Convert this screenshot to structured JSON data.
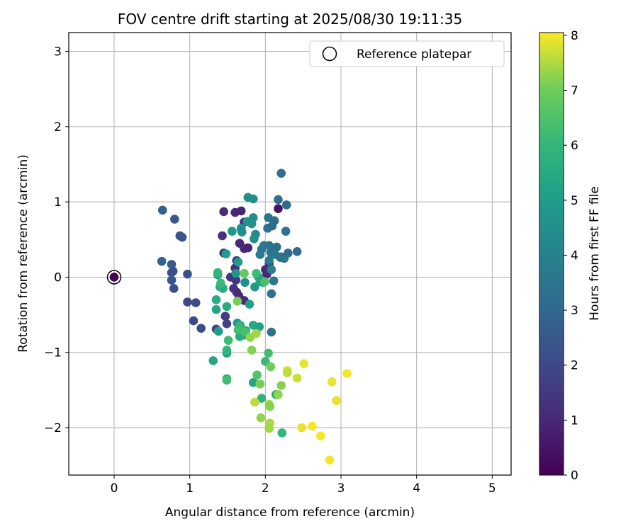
{
  "chart_data": {
    "type": "scatter",
    "title": "FOV centre drift starting at 2025/08/30 19:11:35",
    "xlabel": "Angular distance from reference (arcmin)",
    "ylabel": "Rotation from reference (arcmin)",
    "xlim": [
      -0.6,
      5.25
    ],
    "ylim": [
      -2.63,
      3.25
    ],
    "xticks": [
      "0",
      "1",
      "2",
      "3",
      "4",
      "5"
    ],
    "yticks": [
      "−2",
      "−1",
      "0",
      "1",
      "2",
      "3"
    ],
    "xtick_values": [
      0,
      1,
      2,
      3,
      4,
      5
    ],
    "ytick_values": [
      -2,
      -1,
      0,
      1,
      2,
      3
    ],
    "grid": true,
    "legend": {
      "label": "Reference platepar",
      "location": "upper right"
    },
    "reference_point": {
      "x": 0,
      "y": 0,
      "hours": 0
    },
    "colorbar": {
      "label": "Hours from first FF file",
      "colormap": "viridis",
      "range": [
        0,
        8.05
      ],
      "ticks": [
        "0",
        "1",
        "2",
        "3",
        "4",
        "5",
        "6",
        "7",
        "8"
      ],
      "tick_values": [
        0,
        1,
        2,
        3,
        4,
        5,
        6,
        7,
        8
      ]
    },
    "points": [
      [
        0.64,
        0.89,
        2.8
      ],
      [
        0.8,
        0.77,
        2.6
      ],
      [
        0.87,
        0.55,
        2.5
      ],
      [
        0.9,
        0.53,
        2.4
      ],
      [
        0.63,
        0.21,
        2.9
      ],
      [
        0.76,
        0.17,
        2.6
      ],
      [
        0.78,
        0.08,
        2.3
      ],
      [
        0.76,
        0.06,
        2.2
      ],
      [
        0.97,
        0.04,
        2.3
      ],
      [
        0.76,
        -0.04,
        2.5
      ],
      [
        0.79,
        -0.15,
        2.2
      ],
      [
        0.97,
        -0.33,
        2.0
      ],
      [
        1.08,
        -0.34,
        2.1
      ],
      [
        1.05,
        -0.58,
        2.0
      ],
      [
        1.15,
        -0.68,
        2.1
      ],
      [
        1.45,
        0.87,
        1.2
      ],
      [
        1.6,
        0.86,
        1.0
      ],
      [
        1.68,
        0.88,
        0.9
      ],
      [
        1.72,
        0.73,
        1.1
      ],
      [
        1.68,
        0.64,
        1.2
      ],
      [
        1.66,
        0.45,
        1.0
      ],
      [
        1.43,
        0.55,
        1.3
      ],
      [
        1.45,
        0.32,
        1.4
      ],
      [
        1.72,
        0.38,
        1.0
      ],
      [
        1.77,
        0.39,
        0.9
      ],
      [
        1.62,
        0.22,
        1.5
      ],
      [
        1.6,
        0.12,
        1.3
      ],
      [
        1.54,
        0.0,
        1.4
      ],
      [
        1.61,
        -0.04,
        1.5
      ],
      [
        1.58,
        -0.15,
        1.4
      ],
      [
        1.62,
        -0.2,
        1.2
      ],
      [
        1.65,
        -0.25,
        1.1
      ],
      [
        1.72,
        -0.31,
        1.0
      ],
      [
        1.47,
        -0.52,
        1.6
      ],
      [
        1.49,
        -0.62,
        1.8
      ],
      [
        1.35,
        -0.69,
        1.9
      ],
      [
        2.0,
        0.1,
        1.1
      ],
      [
        2.05,
        0.18,
        1.2
      ],
      [
        2.02,
        0.04,
        1.0
      ],
      [
        2.17,
        0.91,
        0.5
      ],
      [
        2.21,
        1.38,
        3.3
      ],
      [
        2.17,
        1.03,
        3.3
      ],
      [
        2.28,
        0.96,
        3.2
      ],
      [
        2.04,
        0.79,
        3.4
      ],
      [
        2.12,
        0.75,
        3.3
      ],
      [
        2.03,
        0.65,
        3.5
      ],
      [
        2.09,
        0.68,
        3.2
      ],
      [
        2.27,
        0.61,
        3.4
      ],
      [
        2.05,
        0.42,
        3.5
      ],
      [
        2.15,
        0.4,
        3.3
      ],
      [
        1.98,
        0.42,
        3.6
      ],
      [
        1.95,
        0.37,
        3.7
      ],
      [
        2.07,
        0.33,
        3.5
      ],
      [
        2.13,
        0.3,
        3.6
      ],
      [
        2.21,
        0.27,
        3.3
      ],
      [
        2.3,
        0.32,
        3.2
      ],
      [
        2.42,
        0.34,
        3.1
      ],
      [
        2.25,
        0.25,
        3.4
      ],
      [
        2.2,
        0.26,
        3.5
      ],
      [
        2.05,
        0.22,
        3.6
      ],
      [
        1.93,
        0.3,
        3.8
      ],
      [
        2.08,
        0.1,
        3.9
      ],
      [
        2.11,
        -0.05,
        3.6
      ],
      [
        2.08,
        -0.22,
        3.4
      ],
      [
        2.08,
        -0.73,
        3.4
      ],
      [
        1.77,
        1.06,
        4.5
      ],
      [
        1.84,
        1.04,
        4.4
      ],
      [
        1.76,
        0.74,
        4.7
      ],
      [
        1.84,
        0.79,
        4.4
      ],
      [
        1.82,
        0.71,
        4.6
      ],
      [
        1.87,
        0.57,
        4.3
      ],
      [
        1.85,
        0.51,
        4.5
      ],
      [
        1.68,
        0.65,
        4.6
      ],
      [
        1.56,
        0.61,
        4.8
      ],
      [
        1.69,
        0.6,
        4.4
      ],
      [
        1.48,
        0.31,
        4.9
      ],
      [
        1.64,
        0.2,
        5.0
      ],
      [
        1.61,
        0.05,
        4.7
      ],
      [
        1.73,
        -0.07,
        4.5
      ],
      [
        1.86,
        -0.13,
        4.8
      ],
      [
        1.79,
        -0.36,
        5.1
      ],
      [
        1.63,
        -0.61,
        4.8
      ],
      [
        1.38,
        -0.72,
        5.0
      ],
      [
        1.91,
        0.0,
        5.2
      ],
      [
        1.93,
        -0.06,
        5.3
      ],
      [
        1.97,
        -0.07,
        5.2
      ],
      [
        1.37,
        0.03,
        5.4
      ],
      [
        1.4,
        -0.13,
        5.5
      ],
      [
        1.44,
        -0.15,
        5.6
      ],
      [
        1.49,
        -0.39,
        5.5
      ],
      [
        1.35,
        -0.43,
        5.3
      ],
      [
        1.35,
        -0.3,
        5.6
      ],
      [
        1.74,
        -0.71,
        5.4
      ],
      [
        1.72,
        -0.77,
        5.5
      ],
      [
        1.66,
        -0.79,
        5.6
      ],
      [
        1.84,
        -0.64,
        5.4
      ],
      [
        1.92,
        -0.66,
        5.2
      ],
      [
        1.31,
        -1.11,
        5.3
      ],
      [
        1.49,
        -1.01,
        5.2
      ],
      [
        1.49,
        -1.35,
        5.5
      ],
      [
        1.84,
        -1.4,
        5.3
      ],
      [
        1.95,
        -1.61,
        5.8
      ],
      [
        2.14,
        -1.56,
        5.6
      ],
      [
        2.22,
        -2.07,
        5.9
      ],
      [
        1.37,
        0.06,
        5.9
      ],
      [
        1.41,
        -0.08,
        6.1
      ],
      [
        1.51,
        -0.84,
        6.2
      ],
      [
        1.49,
        -0.97,
        6.0
      ],
      [
        1.49,
        -1.37,
        6.3
      ],
      [
        1.88,
        0.05,
        6.2
      ],
      [
        1.99,
        -0.06,
        6.4
      ],
      [
        1.67,
        -0.64,
        6.0
      ],
      [
        1.64,
        -0.7,
        6.3
      ],
      [
        1.73,
        -0.73,
        6.4
      ],
      [
        2.04,
        -1.01,
        6.3
      ],
      [
        2.0,
        -1.12,
        6.1
      ],
      [
        1.89,
        -1.3,
        6.5
      ],
      [
        1.72,
        0.05,
        6.9
      ],
      [
        1.63,
        -0.32,
        7.1
      ],
      [
        1.8,
        -0.8,
        7.3
      ],
      [
        1.88,
        -0.75,
        7.4
      ],
      [
        1.82,
        -0.97,
        7.2
      ],
      [
        2.07,
        -1.19,
        7.0
      ],
      [
        1.93,
        -1.42,
        7.1
      ],
      [
        2.21,
        -1.44,
        7.2
      ],
      [
        2.17,
        -1.56,
        7.3
      ],
      [
        2.05,
        -1.69,
        7.4
      ],
      [
        2.06,
        -1.72,
        7.2
      ],
      [
        1.94,
        -1.87,
        7.3
      ],
      [
        2.06,
        -1.94,
        7.5
      ],
      [
        2.05,
        -2.01,
        7.4
      ],
      [
        1.86,
        -1.66,
        7.6
      ],
      [
        2.29,
        -1.24,
        7.8
      ],
      [
        2.29,
        -1.27,
        7.6
      ],
      [
        2.42,
        -1.34,
        7.7
      ],
      [
        2.51,
        -1.15,
        7.9
      ],
      [
        2.48,
        -2.0,
        7.9
      ],
      [
        2.62,
        -1.98,
        8.0
      ],
      [
        2.73,
        -2.11,
        8.0
      ],
      [
        2.88,
        -1.39,
        7.9
      ],
      [
        3.08,
        -1.28,
        8.0
      ],
      [
        2.94,
        -1.64,
        7.9
      ],
      [
        2.85,
        -2.43,
        8.0
      ]
    ]
  }
}
